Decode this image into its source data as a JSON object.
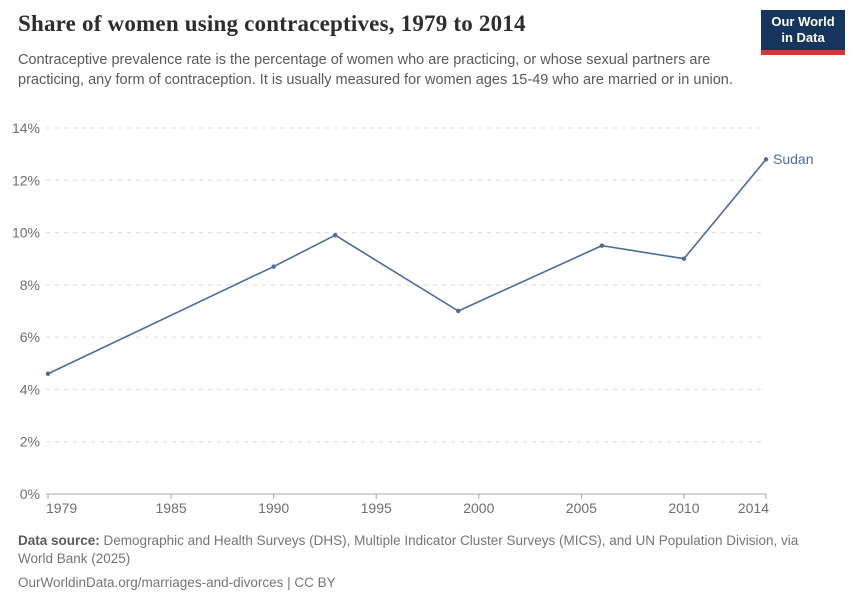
{
  "header": {
    "title": "Share of women using contraceptives, 1979 to 2014",
    "subtitle": "Contraceptive prevalence rate is the percentage of women who are practicing, or whose sexual partners are practicing, any form of contraception. It is usually measured for women ages 15-49 who are married or in union."
  },
  "logo": {
    "line1": "Our World",
    "line2": "in Data",
    "bg_color": "#16355c",
    "bar_color": "#cf3a39"
  },
  "chart_data": {
    "type": "line",
    "title": "Share of women using contraceptives, 1979 to 2014",
    "series": [
      {
        "name": "Sudan",
        "color": "#4c6a9c",
        "x": [
          1979,
          1990,
          1993,
          1999,
          2006,
          2010,
          2014
        ],
        "values": [
          4.6,
          8.7,
          9.9,
          7.0,
          9.5,
          9.0,
          12.8
        ]
      }
    ],
    "xlabel": "",
    "ylabel": "",
    "xlim": [
      1979,
      2014
    ],
    "ylim": [
      0,
      14
    ],
    "xticks": [
      1979,
      1985,
      1990,
      1995,
      2000,
      2005,
      2010,
      2014
    ],
    "yticks": [
      0,
      2,
      4,
      6,
      8,
      10,
      12,
      14
    ],
    "ytick_format": "{v}%",
    "grid": "horizontal-dashed",
    "legend_position": "end-of-line-label",
    "end_label": "Sudan"
  },
  "footer": {
    "source_label": "Data source:",
    "source_text": "Demographic and Health Surveys (DHS), Multiple Indicator Cluster Surveys (MICS), and UN Population Division, via World Bank (2025)",
    "link_text": "OurWorldinData.org/marriages-and-divorces | CC BY"
  },
  "colors": {
    "line": "#4c6a9c",
    "grid": "#dcdcdc",
    "axis": "#a8a8a8",
    "tick_label": "#6e6e6e",
    "title": "#2d2d2d",
    "subtitle": "#5a5a5a",
    "footer": "#757575"
  }
}
